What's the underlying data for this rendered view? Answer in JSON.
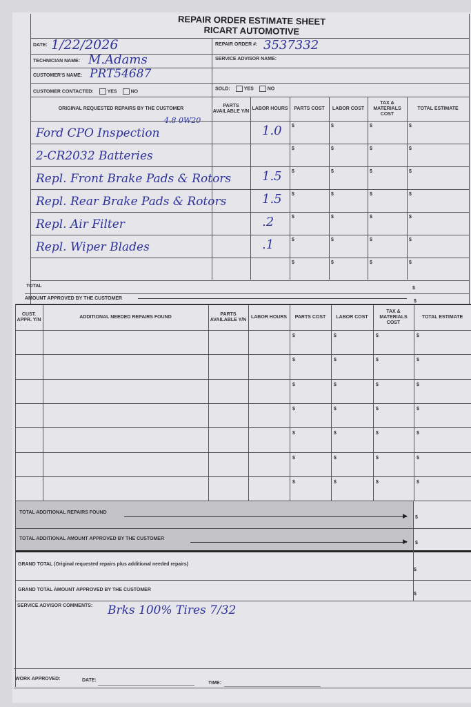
{
  "header": {
    "title": "REPAIR ORDER ESTIMATE SHEET",
    "company": "RICART AUTOMOTIVE"
  },
  "info": {
    "date_label": "DATE:",
    "date": "1/22/2026",
    "technician_label": "TECHNICIAN NAME:",
    "technician": "M.Adams",
    "customer_label": "CUSTOMER'S NAME:",
    "customer": "PRT54687",
    "repair_order_label": "REPAIR ORDER #:",
    "repair_order": "3537332",
    "service_advisor_label": "SERVICE ADVISOR NAME:",
    "contacted_label": "CUSTOMER CONTACTED:",
    "sold_label": "SOLD:",
    "yes": "YES",
    "no": "NO"
  },
  "original": {
    "headers": [
      "ORIGINAL REQUESTED REPAIRS BY THE CUSTOMER",
      "PARTS AVAILABLE Y/N",
      "LABOR HOURS",
      "PARTS COST",
      "LABOR COST",
      "TAX & MATERIALS COST",
      "TOTAL ESTIMATE"
    ],
    "rows": [
      {
        "repair": "Ford CPO Inspection",
        "note": "4.8 0W20",
        "hours": "1.0"
      },
      {
        "repair": "2-CR2032 Batteries",
        "note": "",
        "hours": ""
      },
      {
        "repair": "Repl. Front Brake Pads & Rotors",
        "note": "",
        "hours": "1.5"
      },
      {
        "repair": "Repl. Rear Brake Pads & Rotors",
        "note": "",
        "hours": "1.5"
      },
      {
        "repair": "Repl. Air Filter",
        "note": "",
        "hours": ".2"
      },
      {
        "repair": "Repl. Wiper Blades",
        "note": "",
        "hours": ".1"
      },
      {
        "repair": "",
        "note": "",
        "hours": ""
      }
    ],
    "currency": "$",
    "total_label": "TOTAL",
    "approved_label": "AMOUNT APPROVED BY THE CUSTOMER"
  },
  "additional": {
    "headers": [
      "CUST. APPR. Y/N",
      "ADDITIONAL NEEDED REPAIRS FOUND",
      "PARTS AVAILABLE Y/N",
      "LABOR HOURS",
      "PARTS COST",
      "LABOR COST",
      "TAX & MATERIALS COST",
      "TOTAL ESTIMATE"
    ],
    "row_count": 7,
    "total_found_label": "TOTAL ADDITIONAL REPAIRS FOUND",
    "total_approved_label": "TOTAL ADDITIONAL AMOUNT APPROVED BY THE CUSTOMER"
  },
  "grand": {
    "total_label": "GRAND TOTAL",
    "total_note": "(Original requested repairs plus additional needed repairs)",
    "approved_label": "GRAND TOTAL AMOUNT APPROVED BY THE CUSTOMER"
  },
  "comments": {
    "label": "SERVICE ADVISOR COMMENTS:",
    "text": "Brks 100%   Tires 7/32"
  },
  "footer": {
    "work_approved": "WORK APPROVED:",
    "date": "DATE:",
    "time": "TIME:"
  }
}
